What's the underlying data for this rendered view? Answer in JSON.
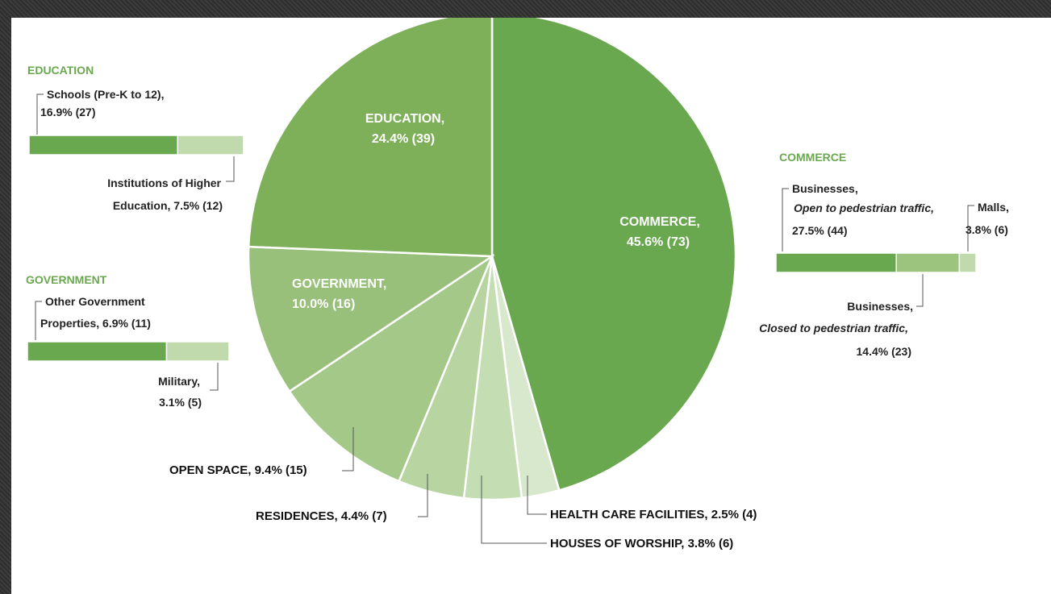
{
  "chart_data": {
    "type": "pie",
    "colors": {
      "commerce": "#6aa84f",
      "education": "#7eb05a",
      "government": "#98c07b",
      "open_space": "#a3c888",
      "residences": "#b7d4a1",
      "houses_of_worship": "#c4ddb2",
      "health_care": "#d8e8cc",
      "bar_dark": "#6aa84f",
      "bar_mid": "#9cc47f",
      "bar_light": "#c0d9ad",
      "title_green": "#6aa84f"
    },
    "slices": [
      {
        "key": "commerce",
        "name": "COMMERCE,",
        "pct_label": "45.6% (73)",
        "value": 45.6,
        "count": 73
      },
      {
        "key": "health_care",
        "name": "HEALTH CARE FACILITIES,",
        "pct_label": "2.5% (4)",
        "value": 2.5,
        "count": 4
      },
      {
        "key": "houses_of_worship",
        "name": "HOUSES OF WORSHIP,",
        "pct_label": "3.8%  (6)",
        "value": 3.8,
        "count": 6
      },
      {
        "key": "residences",
        "name": "RESIDENCES,",
        "pct_label": "4.4% (7)",
        "value": 4.4,
        "count": 7
      },
      {
        "key": "open_space",
        "name": "OPEN SPACE,",
        "pct_label": "9.4% (15)",
        "value": 9.4,
        "count": 15
      },
      {
        "key": "government",
        "name": "GOVERNMENT,",
        "pct_label": "10.0% (16)",
        "value": 10.0,
        "count": 16
      },
      {
        "key": "education",
        "name": "EDUCATION,",
        "pct_label": "24.4% (39)",
        "value": 24.4,
        "count": 39
      }
    ],
    "breakdowns": {
      "education": {
        "title": "EDUCATION",
        "segments": [
          {
            "name": "Schools (Pre-K to 12),",
            "pct_label": "16.9% (27)",
            "value": 16.9,
            "count": 27
          },
          {
            "name": "Institutions of Higher",
            "name2": "Education,",
            "pct_label": "7.5% (12)",
            "value": 7.5,
            "count": 12
          }
        ]
      },
      "government": {
        "title": "GOVERNMENT",
        "segments": [
          {
            "name": "Other Government",
            "name2": "Properties,",
            "pct_label": "6.9% (11)",
            "value": 6.9,
            "count": 11
          },
          {
            "name": "Military,",
            "pct_label": "3.1% (5)",
            "value": 3.1,
            "count": 5
          }
        ]
      },
      "commerce": {
        "title": "COMMERCE",
        "segments": [
          {
            "name": "Businesses,",
            "name2": "Open to pedestrian traffic,",
            "pct_label": "27.5% (44)",
            "value": 27.5,
            "count": 44
          },
          {
            "name": "Businesses,",
            "name2": "Closed to pedestrian traffic,",
            "pct_label": "14.4% (23)",
            "value": 14.4,
            "count": 23
          },
          {
            "name": "Malls,",
            "pct_label": "3.8% (6)",
            "value": 3.8,
            "count": 6
          }
        ]
      }
    }
  }
}
